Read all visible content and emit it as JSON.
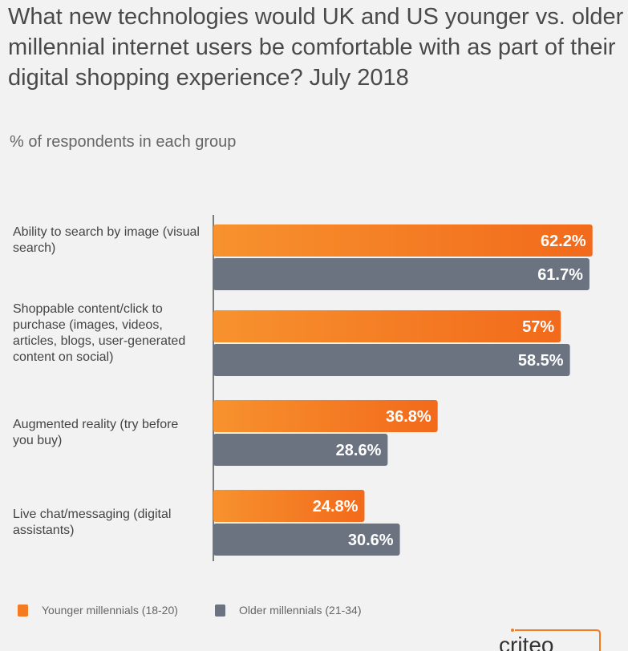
{
  "chart_data": {
    "type": "bar",
    "orientation": "horizontal",
    "title": "What new technologies would UK and US younger vs. older millennial internet users be comfortable with as part of their digital shopping experience? July 2018",
    "subtitle": "% of respondents in each group",
    "categories": [
      "Ability to search by image (visual search)",
      "Shoppable content/click to purchase (images, videos, articles, blogs, user-generated content on social)",
      "Augmented reality (try before you buy)",
      "Live chat/messaging (digital assistants)"
    ],
    "series": [
      {
        "name": "Younger millennials (18-20)",
        "values": [
          62.2,
          57,
          36.8,
          24.8
        ],
        "labels": [
          "62.2%",
          "57%",
          "36.8%",
          "24.8%"
        ],
        "color": "#f47b20"
      },
      {
        "name": "Older millennials (21-34)",
        "values": [
          61.7,
          58.5,
          28.6,
          30.6
        ],
        "labels": [
          "61.7%",
          "58.5%",
          "28.6%",
          "30.6%"
        ],
        "color": "#6b7280"
      }
    ],
    "xlim": [
      0,
      65
    ],
    "grid": false,
    "legend_position": "bottom-left"
  },
  "logo": "criteo"
}
